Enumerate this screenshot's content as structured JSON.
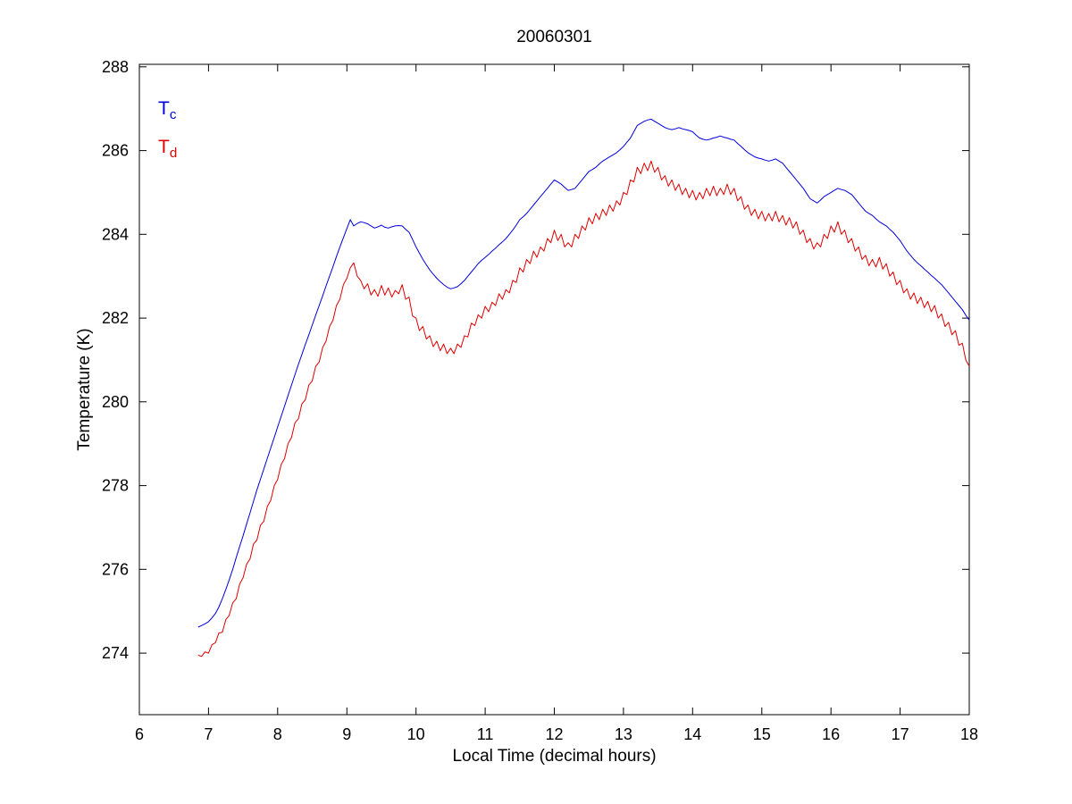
{
  "page": {
    "background": "#ffffff"
  },
  "chart_data": {
    "type": "line",
    "title": "20060301",
    "xlabel": "Local Time (decimal hours)",
    "ylabel": "Temperature (K)",
    "xlim": [
      6,
      18
    ],
    "ylim": [
      272.53,
      288.06
    ],
    "xticks": [
      6,
      7,
      8,
      9,
      10,
      11,
      12,
      13,
      14,
      15,
      16,
      17,
      18
    ],
    "yticks": [
      274,
      276,
      278,
      280,
      282,
      284,
      286,
      288
    ],
    "grid": false,
    "legend": {
      "position": "top-left-inside",
      "entries": [
        {
          "main": "T",
          "sub": "c",
          "color": "#0000dd"
        },
        {
          "main": "T",
          "sub": "d",
          "color": "#dd0000"
        }
      ]
    },
    "series": [
      {
        "name": "Tc",
        "color": "#0000dd",
        "x_start": 6.85,
        "x_step": 0.05,
        "y": [
          274.62,
          274.66,
          274.7,
          274.75,
          274.84,
          274.95,
          275.1,
          275.3,
          275.52,
          275.75,
          276.0,
          276.28,
          276.55,
          276.8,
          277.08,
          277.35,
          277.62,
          277.9,
          278.15,
          278.4,
          278.65,
          278.9,
          279.15,
          279.4,
          279.65,
          279.9,
          280.15,
          280.4,
          280.65,
          280.9,
          281.13,
          281.37,
          281.6,
          281.83,
          282.07,
          282.3,
          282.53,
          282.77,
          283.0,
          283.23,
          283.47,
          283.7,
          283.92,
          284.14,
          284.35,
          284.2,
          284.26,
          284.3,
          284.28,
          284.25,
          284.2,
          284.15,
          284.18,
          284.22,
          284.17,
          284.15,
          284.18,
          284.2,
          284.21,
          284.2,
          284.12,
          284.05,
          283.88,
          283.7,
          283.55,
          283.4,
          283.27,
          283.15,
          283.05,
          282.95,
          282.87,
          282.8,
          282.74,
          282.7,
          282.72,
          282.75,
          282.82,
          282.9,
          283.0,
          283.1,
          283.2,
          283.3,
          283.38,
          283.45,
          283.52,
          283.6,
          283.67,
          283.75,
          283.82,
          283.9,
          284.0,
          284.1,
          284.22,
          284.35,
          284.42,
          284.5,
          284.6,
          284.7,
          284.8,
          284.9,
          285.0,
          285.1,
          285.2,
          285.3,
          285.25,
          285.2,
          285.12,
          285.05,
          285.07,
          285.1,
          285.2,
          285.3,
          285.4,
          285.5,
          285.55,
          285.6,
          285.68,
          285.75,
          285.8,
          285.85,
          285.9,
          285.95,
          286.02,
          286.1,
          286.2,
          286.3,
          286.45,
          286.6,
          286.65,
          286.7,
          286.73,
          286.75,
          286.7,
          286.65,
          286.6,
          286.55,
          286.52,
          286.5,
          286.52,
          286.55,
          286.52,
          286.5,
          286.48,
          286.45,
          286.37,
          286.3,
          286.27,
          286.25,
          286.27,
          286.3,
          286.32,
          286.35,
          286.32,
          286.3,
          286.27,
          286.25,
          286.17,
          286.1,
          286.02,
          285.95,
          285.9,
          285.85,
          285.82,
          285.8,
          285.77,
          285.75,
          285.77,
          285.8,
          285.75,
          285.7,
          285.6,
          285.5,
          285.4,
          285.3,
          285.2,
          285.1,
          284.97,
          284.85,
          284.8,
          284.75,
          284.82,
          284.9,
          284.95,
          285.0,
          285.05,
          285.1,
          285.07,
          285.05,
          285.0,
          284.95,
          284.85,
          284.75,
          284.65,
          284.55,
          284.5,
          284.45,
          284.37,
          284.3,
          284.25,
          284.2,
          284.12,
          284.05,
          283.95,
          283.85,
          283.72,
          283.6,
          283.5,
          283.4,
          283.32,
          283.25,
          283.17,
          283.1,
          283.02,
          282.95,
          282.87,
          282.8,
          282.7,
          282.6,
          282.5,
          282.4,
          282.3,
          282.2,
          282.07,
          281.95
        ]
      },
      {
        "name": "Td",
        "color": "#dd0000",
        "x_start": 6.85,
        "x_step": 0.05,
        "y": [
          273.95,
          273.92,
          274.03,
          274.0,
          274.2,
          274.25,
          274.48,
          274.5,
          274.8,
          274.9,
          275.2,
          275.3,
          275.65,
          275.8,
          276.12,
          276.25,
          276.6,
          276.7,
          277.05,
          277.15,
          277.5,
          277.65,
          278.0,
          278.15,
          278.5,
          278.65,
          279.0,
          279.15,
          279.5,
          279.6,
          279.95,
          280.05,
          280.4,
          280.5,
          280.85,
          280.95,
          281.3,
          281.45,
          281.8,
          281.95,
          282.3,
          282.45,
          282.8,
          282.95,
          283.2,
          283.32,
          283.0,
          282.9,
          282.7,
          282.82,
          282.55,
          282.68,
          282.52,
          282.78,
          282.55,
          282.72,
          282.5,
          282.66,
          282.58,
          282.8,
          282.45,
          282.5,
          282.05,
          282.0,
          281.7,
          281.8,
          281.5,
          281.58,
          281.32,
          281.45,
          281.22,
          281.38,
          281.15,
          281.28,
          281.15,
          281.38,
          281.3,
          281.58,
          281.55,
          281.88,
          281.82,
          282.08,
          282.0,
          282.28,
          282.15,
          282.38,
          282.3,
          282.58,
          282.45,
          282.68,
          282.6,
          282.9,
          282.85,
          283.2,
          283.1,
          283.4,
          283.3,
          283.6,
          283.45,
          283.7,
          283.6,
          283.9,
          283.8,
          284.1,
          283.85,
          284.0,
          283.7,
          283.8,
          283.7,
          284.0,
          283.9,
          284.2,
          284.1,
          284.4,
          284.25,
          284.5,
          284.35,
          284.6,
          284.45,
          284.7,
          284.55,
          284.8,
          284.7,
          285.0,
          284.95,
          285.3,
          285.25,
          285.6,
          285.45,
          285.7,
          285.52,
          285.75,
          285.48,
          285.6,
          285.3,
          285.4,
          285.15,
          285.3,
          285.05,
          285.2,
          284.95,
          285.1,
          284.87,
          285.05,
          284.82,
          285.0,
          284.85,
          285.1,
          284.92,
          285.15,
          284.92,
          285.1,
          284.95,
          285.2,
          284.95,
          285.1,
          284.8,
          284.9,
          284.6,
          284.7,
          284.45,
          284.6,
          284.37,
          284.55,
          284.32,
          284.5,
          284.32,
          284.55,
          284.3,
          284.45,
          284.22,
          284.4,
          284.15,
          284.3,
          284.0,
          284.1,
          283.8,
          283.9,
          283.65,
          283.8,
          283.7,
          284.0,
          283.9,
          284.2,
          284.05,
          284.3,
          284.0,
          284.1,
          283.8,
          283.9,
          283.6,
          283.7,
          283.4,
          283.5,
          283.25,
          283.4,
          283.22,
          283.45,
          283.17,
          283.3,
          283.0,
          283.1,
          282.8,
          282.9,
          282.6,
          282.7,
          282.45,
          282.6,
          282.35,
          282.5,
          282.25,
          282.4,
          282.15,
          282.3,
          282.0,
          282.1,
          281.8,
          281.9,
          281.6,
          281.7,
          281.35,
          281.4,
          281.0,
          280.85
        ]
      }
    ]
  }
}
